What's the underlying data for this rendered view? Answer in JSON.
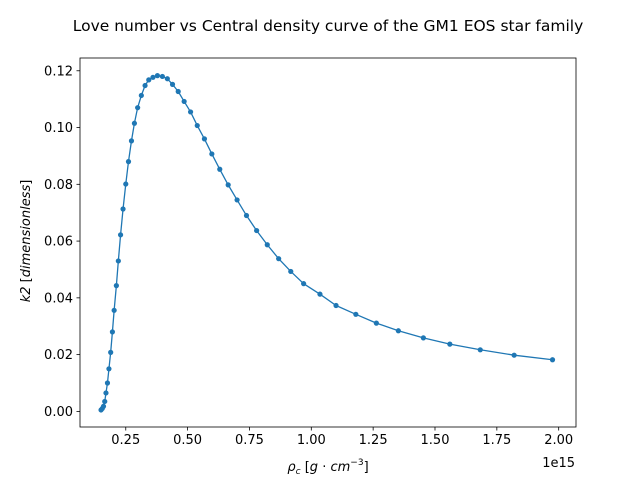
{
  "chart_data": {
    "type": "line",
    "title": "Love number vs Central density curve of the GM1 EOS star family",
    "xlabel_symbol": "ρ",
    "xlabel_subscript": "c",
    "xlabel_unit_open": " [",
    "xlabel_unit_g": "g",
    "xlabel_unit_dot": " · ",
    "xlabel_unit_cm": "cm",
    "xlabel_unit_exp": "−3",
    "xlabel_unit_close": "]",
    "ylabel_symbol": "k2",
    "ylabel_unit_open": " [",
    "ylabel_unit_text": "dimensionless",
    "ylabel_unit_close": "]",
    "x_offset_text": "1e15",
    "x_tick_labels": [
      "0.25",
      "0.50",
      "0.75",
      "1.00",
      "1.25",
      "1.50",
      "1.75",
      "2.00"
    ],
    "x_ticks": [
      250000000000000.0,
      500000000000000.0,
      750000000000000.0,
      1000000000000000.0,
      1250000000000000.0,
      1500000000000000.0,
      1750000000000000.0,
      2000000000000000.0
    ],
    "y_tick_labels": [
      "0.00",
      "0.02",
      "0.04",
      "0.06",
      "0.08",
      "0.10",
      "0.12"
    ],
    "y_ticks": [
      0.0,
      0.02,
      0.04,
      0.06,
      0.08,
      0.1,
      0.12
    ],
    "xlim": [
      65000000000000.0,
      2070000000000000.0
    ],
    "ylim": [
      -0.0055,
      0.1245
    ],
    "grid": false,
    "color": "#1f77b4",
    "marker": "circle",
    "series": [
      {
        "x": [
          150000000000000.0,
          155000000000000.0,
          160000000000000.0,
          165000000000000.0,
          170000000000000.0,
          176000000000000.0,
          182000000000000.0,
          189000000000000.0,
          196000000000000.0,
          203000000000000.0,
          212000000000000.0,
          220000000000000.0,
          229000000000000.0,
          239000000000000.0,
          250000000000000.0,
          261000000000000.0,
          273000000000000.0,
          285000000000000.0,
          298000000000000.0,
          313000000000000.0,
          328000000000000.0,
          343000000000000.0,
          360000000000000.0,
          378000000000000.0,
          398000000000000.0,
          418000000000000.0,
          439000000000000.0,
          462000000000000.0,
          486000000000000.0,
          512000000000000.0,
          539000000000000.0,
          568000000000000.0,
          598000000000000.0,
          630000000000000.0,
          664000000000000.0,
          700000000000000.0,
          738000000000000.0,
          779000000000000.0,
          822000000000000.0,
          868000000000000.0,
          917000000000000.0,
          969000000000000.0,
          1035000000000000.0,
          1100000000000000.0,
          1180000000000000.0,
          1263000000000000.0,
          1352000000000000.0,
          1453000000000000.0,
          1560000000000000.0,
          1683000000000000.0,
          1820000000000000.0,
          1975000000000000.0
        ],
        "y": [
          0.0005,
          0.001,
          0.0018,
          0.0035,
          0.0065,
          0.01,
          0.015,
          0.0208,
          0.028,
          0.0356,
          0.0443,
          0.053,
          0.0622,
          0.0713,
          0.0801,
          0.088,
          0.0953,
          0.1015,
          0.107,
          0.1113,
          0.1148,
          0.1168,
          0.1177,
          0.1183,
          0.118,
          0.1172,
          0.1152,
          0.1127,
          0.1092,
          0.1055,
          0.1007,
          0.096,
          0.0907,
          0.0853,
          0.0798,
          0.0745,
          0.069,
          0.0637,
          0.0587,
          0.0538,
          0.0493,
          0.045,
          0.0413,
          0.0373,
          0.0342,
          0.0311,
          0.0284,
          0.0259,
          0.0237,
          0.0217,
          0.0198,
          0.0182
        ]
      }
    ]
  }
}
